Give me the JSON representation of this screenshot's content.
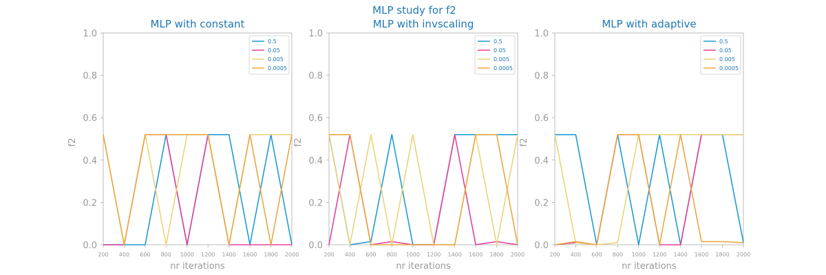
{
  "figure": {
    "suptitle": "MLP study for f2"
  },
  "colors": {
    "title": "#1f77b4",
    "axis": "#999999",
    "spine": "#aaaaaa"
  },
  "chart_data": [
    {
      "type": "line",
      "title": "MLP with constant",
      "xlabel": "nr iterations",
      "ylabel": "f2",
      "ylim": [
        0,
        1
      ],
      "yticks": [
        "0.0",
        "0.2",
        "0.4",
        "0.6",
        "0.8",
        "1.0"
      ],
      "x": [
        200,
        400,
        600,
        800,
        1000,
        1200,
        1400,
        1600,
        1800,
        2000
      ],
      "xticks": [
        "200",
        "400",
        "600",
        "800",
        "1000",
        "1200",
        "1400",
        "1600",
        "1800",
        "2000"
      ],
      "legend_position": "top-right",
      "grid": false,
      "series": [
        {
          "name": "0.5",
          "color": "#1f9bd0",
          "values": [
            0.0,
            0.0,
            0.0,
            0.52,
            0.0,
            0.52,
            0.52,
            0.0,
            0.52,
            0.0
          ]
        },
        {
          "name": "0.05",
          "color": "#e0429a",
          "values": [
            0.0,
            0.0,
            0.52,
            0.52,
            0.0,
            0.52,
            0.0,
            0.0,
            0.0,
            0.0
          ]
        },
        {
          "name": "0.005",
          "color": "#ead37a",
          "values": [
            0.52,
            0.0,
            0.52,
            0.0,
            0.52,
            0.52,
            0.0,
            0.52,
            0.52,
            0.52
          ]
        },
        {
          "name": "0.0005",
          "color": "#e8a842",
          "values": [
            0.52,
            0.0,
            0.52,
            0.52,
            0.52,
            0.52,
            0.0,
            0.52,
            0.0,
            0.52
          ]
        }
      ]
    },
    {
      "type": "line",
      "title": "MLP with invscaling",
      "xlabel": "nr iterations",
      "ylabel": "f2",
      "ylim": [
        0,
        1
      ],
      "yticks": [
        "0.0",
        "0.2",
        "0.4",
        "0.6",
        "0.8",
        "1.0"
      ],
      "x": [
        200,
        400,
        600,
        800,
        1000,
        1200,
        1400,
        1600,
        1800,
        2000
      ],
      "xticks": [
        "200",
        "400",
        "600",
        "800",
        "1000",
        "1200",
        "1400",
        "1600",
        "1800",
        "2000"
      ],
      "legend_position": "top-right",
      "grid": false,
      "series": [
        {
          "name": "0.5",
          "color": "#1f9bd0",
          "values": [
            0.52,
            0.0,
            0.015,
            0.52,
            0.0,
            0.0,
            0.52,
            0.52,
            0.52,
            0.52
          ]
        },
        {
          "name": "0.05",
          "color": "#e0429a",
          "values": [
            0.0,
            0.52,
            0.0,
            0.015,
            0.0,
            0.0,
            0.52,
            0.0,
            0.015,
            0.0
          ]
        },
        {
          "name": "0.005",
          "color": "#ead37a",
          "values": [
            0.52,
            0.0,
            0.52,
            0.0,
            0.52,
            0.0,
            0.0,
            0.52,
            0.0,
            0.52
          ]
        },
        {
          "name": "0.0005",
          "color": "#e8a842",
          "values": [
            0.52,
            0.52,
            0.0,
            0.0,
            0.0,
            0.0,
            0.0,
            0.52,
            0.52,
            0.0
          ]
        }
      ]
    },
    {
      "type": "line",
      "title": "MLP with adaptive",
      "xlabel": "nr iterations",
      "ylabel": "f2",
      "ylim": [
        0,
        1
      ],
      "yticks": [
        "0.0",
        "0.2",
        "0.4",
        "0.6",
        "0.8",
        "1.0"
      ],
      "x": [
        200,
        400,
        600,
        800,
        1000,
        1200,
        1400,
        1600,
        1800,
        2000
      ],
      "xticks": [
        "200",
        "400",
        "600",
        "800",
        "1000",
        "1200",
        "1400",
        "1600",
        "1800",
        "2000"
      ],
      "legend_position": "top-right",
      "grid": false,
      "series": [
        {
          "name": "0.5",
          "color": "#1f9bd0",
          "values": [
            0.52,
            0.52,
            0.0,
            0.52,
            0.0,
            0.52,
            0.0,
            0.52,
            0.52,
            0.01
          ]
        },
        {
          "name": "0.05",
          "color": "#e0429a",
          "values": [
            0.0,
            0.01,
            0.0,
            0.52,
            0.52,
            0.0,
            0.0,
            0.52,
            0.52,
            0.52
          ]
        },
        {
          "name": "0.005",
          "color": "#ead37a",
          "values": [
            0.52,
            0.01,
            0.0,
            0.01,
            0.52,
            0.52,
            0.52,
            0.52,
            0.52,
            0.52
          ]
        },
        {
          "name": "0.0005",
          "color": "#e8a842",
          "values": [
            0.0,
            0.015,
            0.0,
            0.52,
            0.52,
            0.0,
            0.52,
            0.015,
            0.015,
            0.01
          ]
        }
      ]
    }
  ]
}
